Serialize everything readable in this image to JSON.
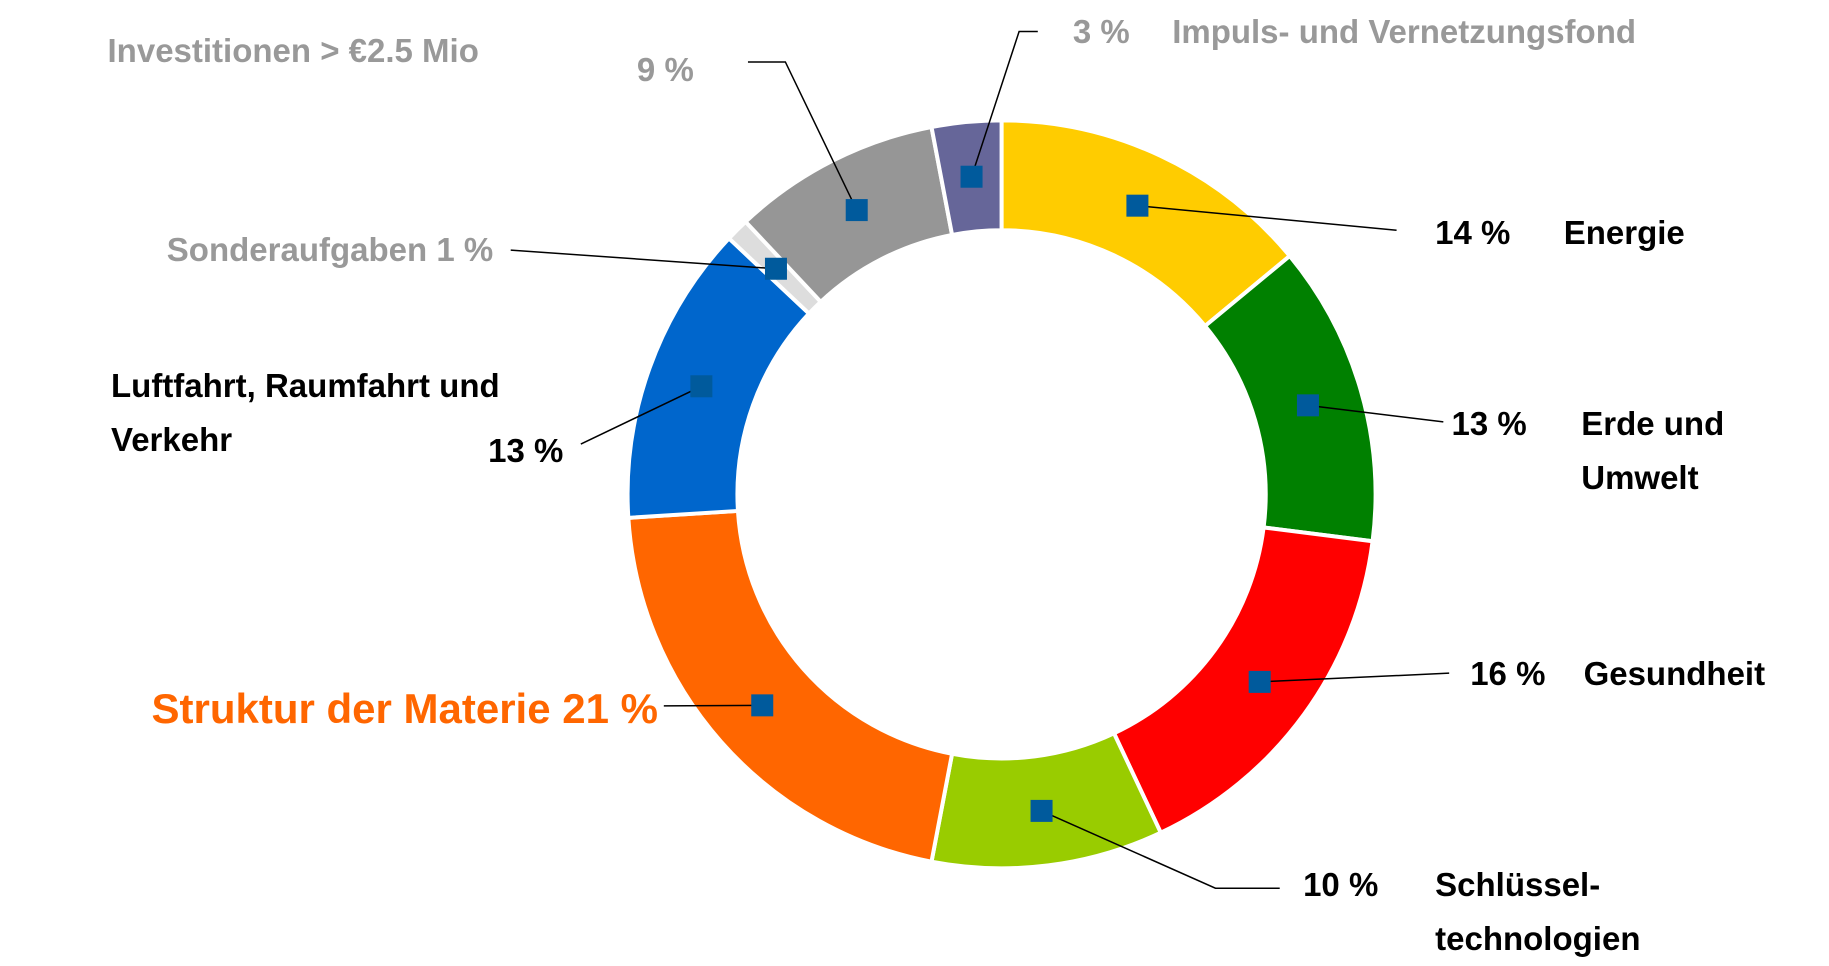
{
  "chart_data": {
    "type": "donut",
    "categories": [
      "Energie",
      "Erde und Umwelt",
      "Gesundheit",
      "Schlüssel-technologien",
      "Struktur der Materie",
      "Luftfahrt, Raumfahrt und Verkehr",
      "Sonderaufgaben",
      "Investitionen > €2.5 Mio",
      "Impuls- und Vernetzungsfond"
    ],
    "values": [
      14,
      13,
      16,
      10,
      21,
      13,
      1,
      9,
      3
    ],
    "value_labels": [
      "14 %",
      "13 %",
      "16 %",
      "10 %",
      "21 %",
      "13 %",
      "1 %",
      "9 %",
      "3 %"
    ],
    "colors": [
      "#ffcc00",
      "#008000",
      "#ff0000",
      "#99cc00",
      "#ff6600",
      "#0066cc",
      "#dddddd",
      "#969696",
      "#666699"
    ]
  }
}
